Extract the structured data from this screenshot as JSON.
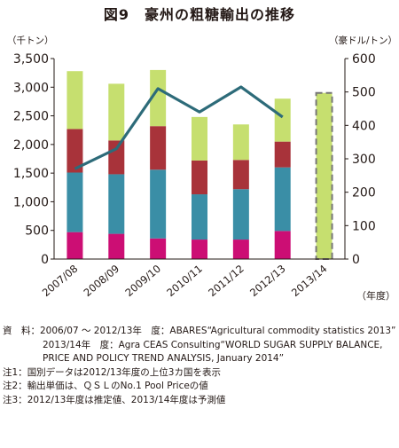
{
  "title": "図9　豪州の粗糖輸出の推移",
  "chart_data": {
    "type": "bar",
    "stacked": true,
    "categories": [
      "2007/08",
      "2008/09",
      "2009/10",
      "2010/11",
      "2011/12",
      "2012/13",
      "2013/14"
    ],
    "left_axis": {
      "label": "（千トン）",
      "min": 0,
      "max": 3500,
      "ticks": [
        "0",
        "500",
        "1,000",
        "1,500",
        "2,000",
        "2,500",
        "3,000",
        "3,500"
      ]
    },
    "right_axis": {
      "label": "（豪ドル/トン）",
      "min": 0,
      "max": 600,
      "ticks": [
        "0",
        "100",
        "200",
        "300",
        "400",
        "500",
        "600"
      ]
    },
    "x_unit": "（年度）",
    "series": [
      {
        "values": [
          470,
          440,
          360,
          340,
          340,
          490,
          null
        ],
        "color": "#cc0e74"
      },
      {
        "values": [
          1040,
          1040,
          1200,
          790,
          880,
          1110,
          null
        ],
        "color": "#3a8ea6"
      },
      {
        "values": [
          760,
          590,
          760,
          590,
          510,
          450,
          null
        ],
        "color": "#a8333a"
      },
      {
        "values": [
          1010,
          990,
          980,
          760,
          620,
          750,
          null
        ],
        "color": "#c6df6f"
      }
    ],
    "forecast_total": {
      "category": "2013/14",
      "value": 2900,
      "color": "#c6df6f",
      "border": "#777777"
    },
    "line": {
      "values": [
        270,
        330,
        510,
        440,
        515,
        425,
        null
      ],
      "color": "#2d6b79",
      "axis": "right"
    },
    "grid": false
  },
  "notes": [
    {
      "label": "資　料：",
      "text": "2006/07 〜 2012/13年　度：ABARES“Agricultural commodity statistics 2013”"
    },
    {
      "label": "",
      "text": "2013/14年　度：Agra CEAS Consulting“WORLD SUGAR SUPPLY BALANCE, PRICE AND POLICY TREND ANALYSIS, January 2014”"
    },
    {
      "label": "注1：",
      "text": "国別データは2012/13年度の上位3カ国を表示"
    },
    {
      "label": "注2：",
      "text": "輸出単価は、ＱＳＬのNo.1 Pool Priceの値"
    },
    {
      "label": "注3：",
      "text": "2012/13年度は推定値、2013/14年度は予測値"
    }
  ]
}
